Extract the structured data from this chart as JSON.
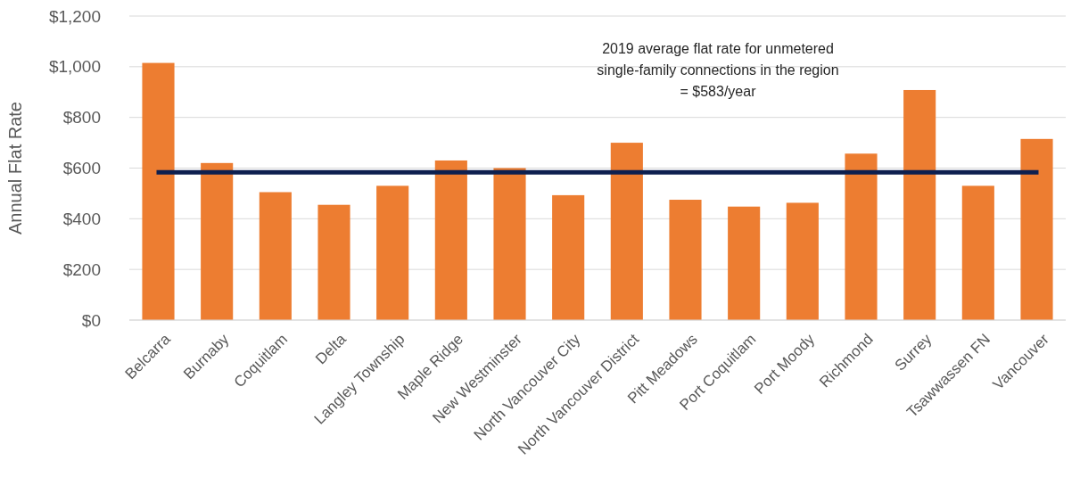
{
  "chart_data": {
    "type": "bar",
    "ylabel": "Annual Flat Rate",
    "categories": [
      "Belcarra",
      "Burnaby",
      "Coquitlam",
      "Delta",
      "Langley Township",
      "Maple Ridge",
      "New Westminster",
      "North Vancouver City",
      "North Vancouver District",
      "Pitt Meadows",
      "Port Coquitlam",
      "Port Moody",
      "Richmond",
      "Surrey",
      "Tsawwassen FN",
      "Vancouver"
    ],
    "values": [
      1015,
      620,
      505,
      455,
      530,
      630,
      600,
      493,
      700,
      475,
      448,
      463,
      657,
      908,
      530,
      715
    ],
    "color": "#ed7d31",
    "ylim": [
      0,
      1200
    ],
    "yticks": [
      {
        "value": 0,
        "label": "$0"
      },
      {
        "value": 200,
        "label": "$200"
      },
      {
        "value": 400,
        "label": "$400"
      },
      {
        "value": 600,
        "label": "$600"
      },
      {
        "value": 800,
        "label": "$800"
      },
      {
        "value": 1000,
        "label": "$1,000"
      },
      {
        "value": 1200,
        "label": "$1,200"
      }
    ],
    "grid": "y",
    "annotations": [
      "2019 average flat rate for unmetered\nsingle-family connections in the region\n= $583/year"
    ],
    "ref_lines": [
      {
        "axis": "y",
        "value": 583,
        "color": "#0d1f4f"
      }
    ]
  }
}
